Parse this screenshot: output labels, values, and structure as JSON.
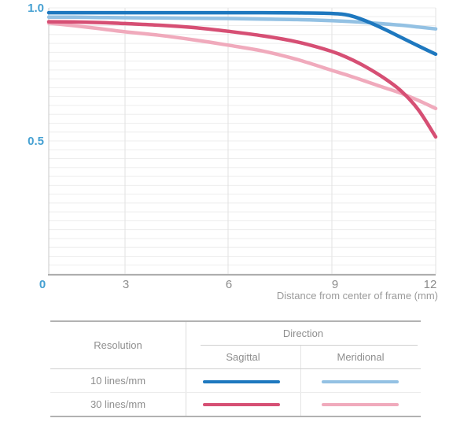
{
  "chart_data": {
    "type": "line",
    "title": "",
    "xlabel": "Distance from center of frame (mm)",
    "ylabel": "",
    "xlim": [
      0,
      12
    ],
    "ylim": [
      0,
      1.0
    ],
    "grid": "on",
    "legend_position": "table-below",
    "x": [
      0,
      1,
      2,
      3,
      4,
      5,
      6,
      7,
      8,
      9,
      9.5,
      10,
      10.5,
      11,
      11.5,
      12
    ],
    "series": [
      {
        "name": "10 lines/mm Sagittal",
        "color": "#1e78bf",
        "values": [
          0.982,
          0.982,
          0.982,
          0.982,
          0.982,
          0.982,
          0.982,
          0.982,
          0.981,
          0.979,
          0.972,
          0.95,
          0.921,
          0.889,
          0.857,
          0.826
        ]
      },
      {
        "name": "10 lines/mm Meridional",
        "color": "#93c1e3",
        "values": [
          0.965,
          0.965,
          0.964,
          0.963,
          0.962,
          0.961,
          0.96,
          0.958,
          0.956,
          0.952,
          0.949,
          0.945,
          0.94,
          0.935,
          0.928,
          0.921
        ]
      },
      {
        "name": "30 lines/mm Sagittal",
        "color": "#d64f74",
        "values": [
          0.948,
          0.947,
          0.945,
          0.941,
          0.935,
          0.926,
          0.912,
          0.895,
          0.872,
          0.836,
          0.81,
          0.777,
          0.737,
          0.688,
          0.617,
          0.515
        ]
      },
      {
        "name": "30 lines/mm Meridional",
        "color": "#f0aabc",
        "values": [
          0.943,
          0.933,
          0.922,
          0.91,
          0.897,
          0.88,
          0.86,
          0.838,
          0.806,
          0.765,
          0.745,
          0.723,
          0.701,
          0.679,
          0.652,
          0.622
        ]
      }
    ],
    "xticks": [
      {
        "label": "0",
        "value": 0,
        "accent": true
      },
      {
        "label": "3",
        "value": 3,
        "accent": false
      },
      {
        "label": "6",
        "value": 6,
        "accent": false
      },
      {
        "label": "9",
        "value": 9,
        "accent": false
      },
      {
        "label": "12",
        "value": 12,
        "accent": false
      }
    ],
    "yticks": [
      {
        "label": "1.0",
        "value": 1.0
      },
      {
        "label": "0.5",
        "value": 0.5
      }
    ],
    "axis_colors": {
      "accent": "#45a0d2",
      "ticks": "#8c8c8c",
      "axis_title": "#9a9a9a"
    }
  },
  "legend_table": {
    "resolution_header": "Resolution",
    "direction_header": "Direction",
    "direction_columns": [
      "Sagittal",
      "Meridional"
    ],
    "rows": [
      {
        "label": "10 lines/mm",
        "sagittal_series": 0,
        "meridional_series": 1
      },
      {
        "label": "30 lines/mm",
        "sagittal_series": 2,
        "meridional_series": 3
      }
    ]
  }
}
